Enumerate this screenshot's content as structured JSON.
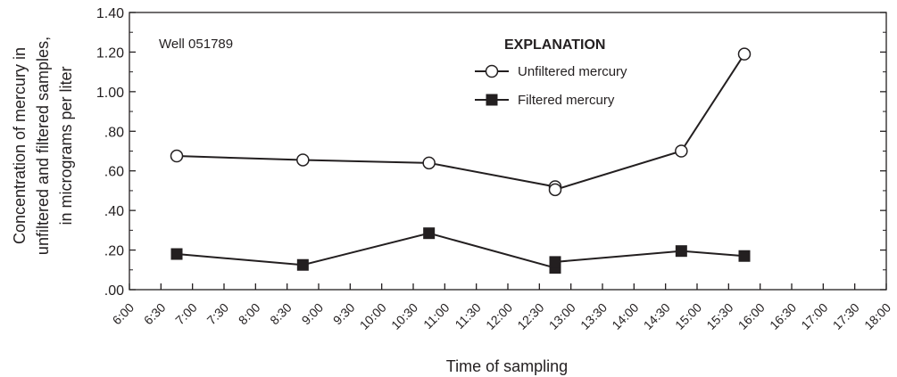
{
  "chart_data": {
    "type": "line",
    "annotation": "Well 051789",
    "xlabel": "Time of sampling",
    "ylabel_lines": [
      "Concentration of mercury in",
      "unfiltered and filtered samples,",
      "in micrograms per liter"
    ],
    "legend": {
      "title": "EXPLANATION",
      "placement": "top-center"
    },
    "x_ticks": [
      "6:00",
      "6:30",
      "7:00",
      "7:30",
      "8:00",
      "8:30",
      "9:00",
      "9:30",
      "10:00",
      "10:30",
      "11:00",
      "11:30",
      "12:00",
      "12:30",
      "13:00",
      "13:30",
      "14:00",
      "14:30",
      "15:00",
      "15:30",
      "16:00",
      "16:30",
      "17:00",
      "17:30",
      "18:00"
    ],
    "xlim": [
      "6:00",
      "18:00"
    ],
    "y_ticks": [
      0,
      0.2,
      0.4,
      0.6,
      0.8,
      1.0,
      1.2,
      1.4
    ],
    "y_tick_labels": [
      ".00",
      ".20",
      ".40",
      ".60",
      ".80",
      "1.00",
      "1.20",
      "1.40"
    ],
    "ylim": [
      0,
      1.4
    ],
    "grid": false,
    "series": [
      {
        "name": "Unfiltered mercury",
        "marker": "open-circle",
        "x": [
          "6:45",
          "8:45",
          "10:45",
          "12:45",
          "12:45",
          "14:45",
          "15:45"
        ],
        "y": [
          0.675,
          0.655,
          0.64,
          0.52,
          0.505,
          0.7,
          1.19
        ]
      },
      {
        "name": "Filtered mercury",
        "marker": "filled-square",
        "x": [
          "6:45",
          "8:45",
          "10:45",
          "12:45",
          "12:45",
          "14:45",
          "15:45"
        ],
        "y": [
          0.18,
          0.125,
          0.285,
          0.11,
          0.14,
          0.195,
          0.17
        ]
      }
    ],
    "colors": {
      "line": "#231f20",
      "text": "#231f20",
      "background": "#ffffff"
    }
  }
}
